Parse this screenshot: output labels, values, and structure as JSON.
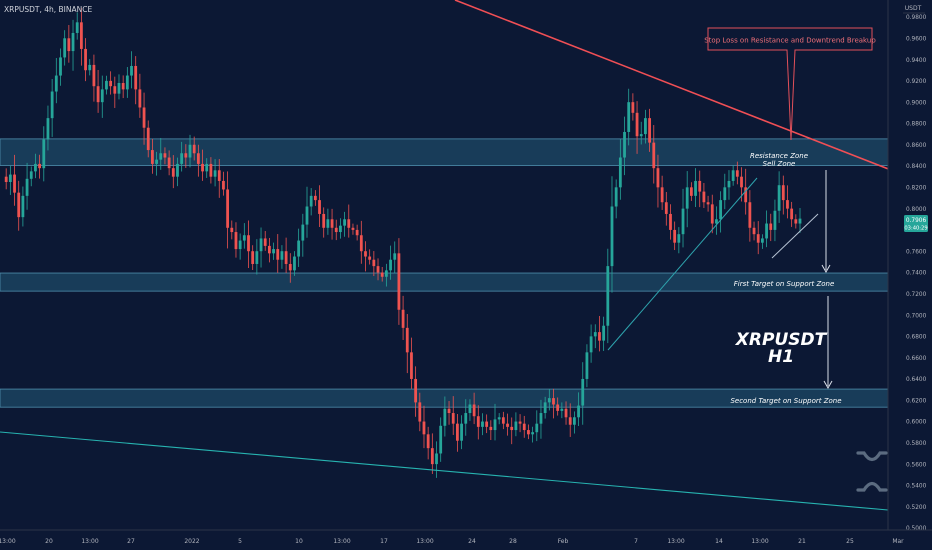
{
  "header": {
    "symbol": "XRPUSDT",
    "interval": "4h",
    "exchange": "BINANCE",
    "title_text": "XRPUSDT, 4h, BINANCE"
  },
  "price_axis": {
    "currency_label": "USDT",
    "last_price": "0.7906",
    "countdown": "03:40:29",
    "ticks": [
      "0.9800",
      "0.9600",
      "0.9400",
      "0.9200",
      "0.9000",
      "0.8800",
      "0.8600",
      "0.8400",
      "0.8200",
      "0.8000",
      "0.7800",
      "0.7600",
      "0.7400",
      "0.7200",
      "0.7000",
      "0.6800",
      "0.6600",
      "0.6400",
      "0.6200",
      "0.6000",
      "0.5800",
      "0.5600",
      "0.5400",
      "0.5200",
      "0.5000"
    ]
  },
  "time_axis": {
    "labels": [
      "13:00",
      "20",
      "13:00",
      "27",
      "2022",
      "5",
      "10",
      "13:00",
      "17",
      "13:00",
      "24",
      "28",
      "Feb",
      "7",
      "13:00",
      "14",
      "13:00",
      "21",
      "25",
      "Mar"
    ]
  },
  "annotations": {
    "stop_loss": "Stop Loss on Resistance and Downtrend Breakup",
    "resistance_line1": "Resistance Zone",
    "resistance_line2": "Sell Zone",
    "first_target": "First Target on Support Zone",
    "second_target": "Second Target on Support Zone",
    "watermark_line1": "XRPUSDT",
    "watermark_line2": "H1",
    "logo": "xrp-logo"
  },
  "chart_data": {
    "type": "candlestick",
    "title": "XRPUSDT, 4h, BINANCE",
    "ylabel": "USDT",
    "ylim": [
      0.495,
      0.99
    ],
    "grid": false,
    "last_price": 0.7906,
    "zones": [
      {
        "name": "Resistance Zone / Sell Zone",
        "low": 0.8405,
        "high": 0.8655
      },
      {
        "name": "First Target on Support Zone",
        "low": 0.7225,
        "high": 0.7395
      },
      {
        "name": "Second Target on Support Zone",
        "low": 0.6135,
        "high": 0.6305
      }
    ],
    "trendlines": [
      {
        "name": "Downtrend resistance",
        "color": "#f04f55",
        "from": {
          "x": "late Dec",
          "y": 1.005
        },
        "to": {
          "x": "late Feb",
          "y": 0.823
        }
      },
      {
        "name": "Long-term support",
        "color": "#27b3b0",
        "from": {
          "x": "mid Dec",
          "y": 0.588
        },
        "to": {
          "x": "late Feb",
          "y": 0.518
        }
      },
      {
        "name": "Rising support",
        "color": "#2ea3ad",
        "from": {
          "x": "6 Feb",
          "y": 0.666
        },
        "to": {
          "x": "20 Feb",
          "y": 0.831
        }
      }
    ],
    "colors": {
      "up": "#26a69a",
      "down": "#ef5350",
      "zone": "#2a6f8c",
      "background": "#0c1834"
    },
    "price_path": [
      [
        0.83,
        0.825,
        0.832,
        0.815,
        0.792,
        0.812,
        0.828,
        0.835,
        0.842,
        0.838,
        0.865,
        0.885,
        0.91,
        0.925,
        0.942,
        0.96,
        0.948,
        0.965,
        0.975,
        0.95,
        0.93,
        0.935,
        0.915,
        0.9,
        0.912,
        0.92,
        0.915,
        0.908,
        0.918,
        0.912,
        0.925,
        0.934,
        0.912,
        0.895,
        0.876,
        0.855,
        0.842,
        0.846,
        0.852,
        0.848,
        0.838,
        0.83,
        0.842,
        0.852,
        0.848,
        0.86,
        0.852,
        0.842,
        0.835,
        0.842,
        0.83,
        0.836,
        0.826,
        0.818,
        0.782,
        0.778,
        0.762,
        0.77,
        0.775,
        0.76,
        0.748,
        0.76,
        0.772,
        0.765,
        0.758,
        0.762,
        0.752,
        0.76,
        0.748,
        0.742,
        0.755,
        0.77,
        0.785,
        0.802,
        0.812,
        0.808,
        0.795,
        0.782,
        0.79,
        0.782,
        0.778,
        0.784,
        0.79,
        0.782,
        0.78,
        0.775,
        0.76,
        0.755,
        0.752,
        0.746,
        0.74,
        0.736,
        0.742,
        0.752,
        0.758,
        0.705,
        0.688,
        0.665,
        0.64,
        0.618,
        0.6,
        0.588,
        0.575,
        0.56,
        0.57,
        0.596,
        0.612,
        0.608,
        0.598,
        0.582,
        0.598,
        0.608,
        0.616,
        0.605,
        0.595,
        0.6,
        0.595,
        0.592,
        0.602,
        0.604,
        0.598,
        0.595,
        0.592,
        0.6,
        0.598,
        0.592,
        0.588,
        0.59,
        0.598,
        0.608,
        0.618,
        0.622,
        0.616,
        0.61,
        0.612,
        0.604,
        0.597,
        0.604,
        0.615,
        0.64,
        0.665,
        0.68,
        0.684,
        0.676,
        0.69,
        0.746,
        0.802,
        0.82,
        0.848,
        0.872,
        0.9,
        0.89,
        0.868,
        0.87,
        0.885,
        0.862,
        0.838,
        0.82,
        0.806,
        0.795,
        0.78,
        0.768,
        0.776,
        0.8,
        0.82,
        0.812,
        0.826,
        0.816,
        0.806,
        0.804,
        0.786,
        0.79,
        0.808,
        0.82,
        0.826,
        0.836,
        0.83,
        0.82,
        0.806,
        0.782,
        0.776,
        0.768,
        0.772,
        0.786,
        0.78,
        0.798,
        0.822,
        0.808,
        0.8,
        0.79,
        0.786,
        0.7906
      ]
    ]
  }
}
